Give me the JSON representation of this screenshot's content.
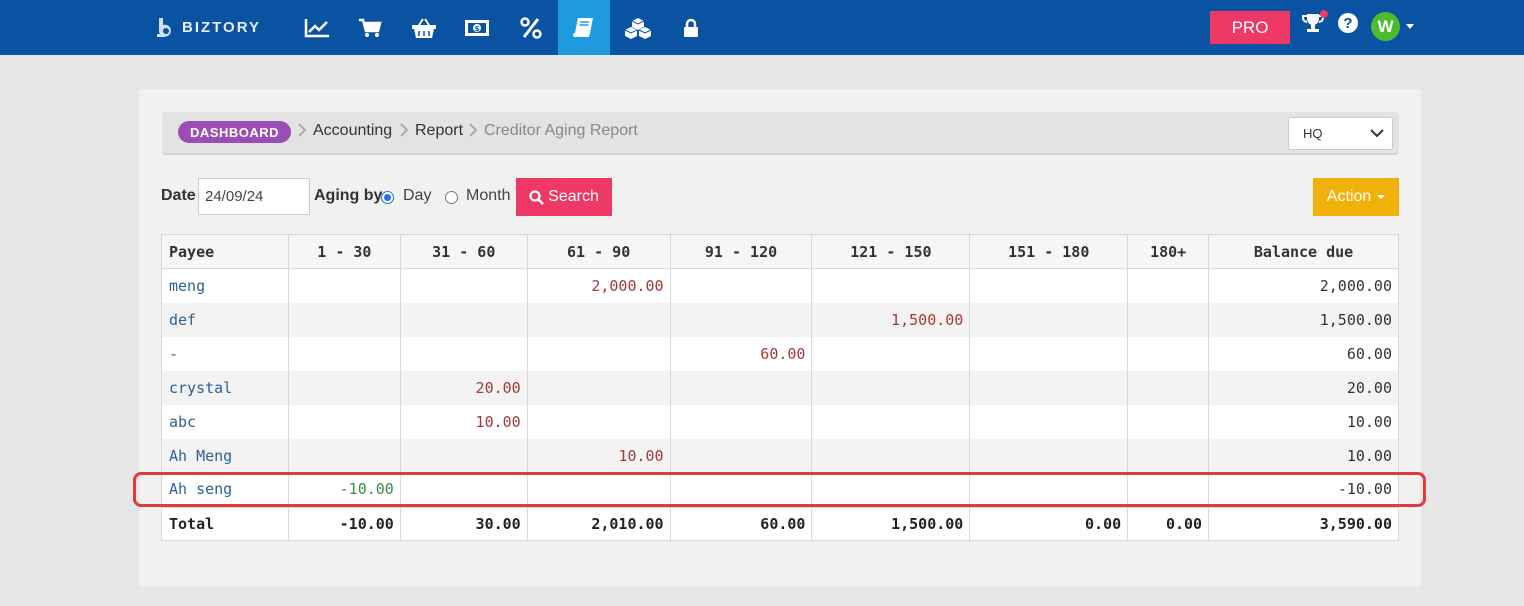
{
  "brand": {
    "name": "BIZTORY"
  },
  "nav": {
    "icons": [
      "chart-line-icon",
      "cart-icon",
      "basket-icon",
      "money-icon",
      "percent-icon",
      "book-icon",
      "cubes-icon",
      "lock-icon"
    ],
    "active": "book-icon",
    "pro_label": "PRO",
    "avatar_letter": "W",
    "help_glyph": "?"
  },
  "breadcrumb": {
    "dashboard": "DASHBOARD",
    "items": [
      "Accounting",
      "Report"
    ],
    "current": "Creditor Aging Report"
  },
  "branch_select": {
    "value": "HQ"
  },
  "filters": {
    "date_label": "Date",
    "date_value": "24/09/24",
    "aging_label": "Aging by",
    "options": [
      "Day",
      "Month"
    ],
    "selected": "Day",
    "search_label": "Search",
    "action_label": "Action"
  },
  "table": {
    "headers": [
      "Payee",
      "1 - 30",
      "31 - 60",
      "61 - 90",
      "91 - 120",
      "121 - 150",
      "151 - 180",
      "180+",
      "Balance due"
    ],
    "rows": [
      [
        "meng",
        "",
        "",
        "2,000.00",
        "",
        "",
        "",
        "",
        "2,000.00"
      ],
      [
        "def",
        "",
        "",
        "",
        "",
        "1,500.00",
        "",
        "",
        "1,500.00"
      ],
      [
        "-",
        "",
        "",
        "",
        "60.00",
        "",
        "",
        "",
        "60.00"
      ],
      [
        "crystal",
        "",
        "20.00",
        "",
        "",
        "",
        "",
        "",
        "20.00"
      ],
      [
        "abc",
        "",
        "10.00",
        "",
        "",
        "",
        "",
        "",
        "10.00"
      ],
      [
        "Ah Meng",
        "",
        "",
        "10.00",
        "",
        "",
        "",
        "",
        "10.00"
      ],
      [
        "Ah seng",
        "-10.00",
        "",
        "",
        "",
        "",
        "",
        "",
        "-10.00"
      ]
    ],
    "total": [
      "Total",
      "-10.00",
      "30.00",
      "2,010.00",
      "60.00",
      "1,500.00",
      "0.00",
      "0.00",
      "3,590.00"
    ],
    "highlighted_row": "Ah seng"
  },
  "colors": {
    "navbar": "#0a53a3",
    "active_nav": "#1e9ae0",
    "pro": "#ee3865",
    "search": "#ee3865",
    "action": "#f0b10b",
    "dashboard_pill": "#9b4fb4",
    "highlight": "#e03a3e"
  }
}
